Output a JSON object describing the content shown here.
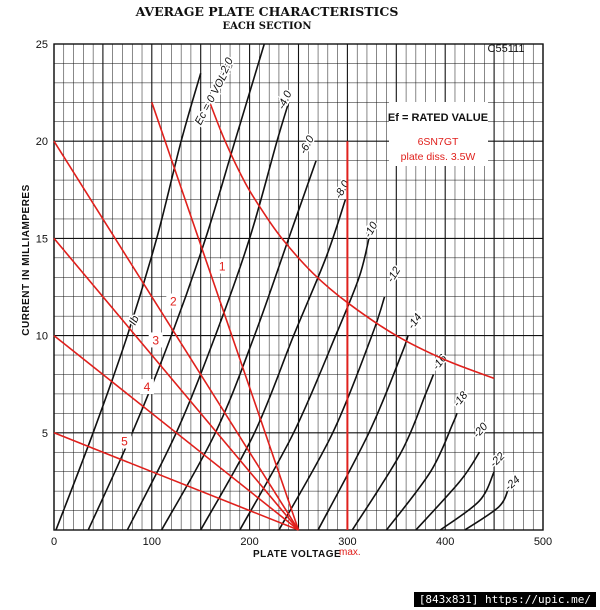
{
  "chart_data": {
    "type": "line",
    "title": "AVERAGE PLATE CHARACTERISTICS",
    "subtitle": "EACH SECTION",
    "catalog_code": "C55111",
    "xlabel": "PLATE VOLTAGE",
    "ylabel": "CURRENT IN MILLIAMPERES",
    "xlim": [
      0,
      500
    ],
    "ylim": [
      0,
      25
    ],
    "xticks": [
      0,
      100,
      200,
      300,
      400,
      500
    ],
    "yticks": [
      5,
      10,
      15,
      20,
      25
    ],
    "grid": true,
    "legend_box": "Ef = RATED VALUE",
    "annotations": [
      "6SN7GT",
      "plate diss. 3.5W"
    ],
    "max_line": {
      "label": "max.",
      "x": 300,
      "y_top": 20
    },
    "grid_curves": [
      {
        "name": "Ec = 0 VOLTS",
        "points": [
          [
            2,
            0
          ],
          [
            40,
            5
          ],
          [
            75,
            10
          ],
          [
            105,
            15
          ],
          [
            130,
            20
          ],
          [
            150,
            23.5
          ]
        ]
      },
      {
        "name": "-2.0",
        "points": [
          [
            35,
            0
          ],
          [
            80,
            5
          ],
          [
            120,
            10
          ],
          [
            155,
            15
          ],
          [
            185,
            20
          ],
          [
            215,
            25
          ]
        ]
      },
      {
        "name": "-4.0",
        "points": [
          [
            75,
            0
          ],
          [
            125,
            5
          ],
          [
            165,
            10
          ],
          [
            200,
            15
          ],
          [
            228,
            20
          ],
          [
            240,
            22
          ]
        ]
      },
      {
        "name": "-6.0",
        "points": [
          [
            110,
            0
          ],
          [
            165,
            5
          ],
          [
            205,
            10
          ],
          [
            240,
            15
          ],
          [
            268,
            19
          ]
        ]
      },
      {
        "name": "-8.0",
        "points": [
          [
            150,
            0
          ],
          [
            205,
            5
          ],
          [
            245,
            10
          ],
          [
            278,
            14
          ],
          [
            298,
            17
          ]
        ]
      },
      {
        "name": "-10",
        "points": [
          [
            190,
            0
          ],
          [
            245,
            5
          ],
          [
            288,
            10
          ],
          [
            312,
            13
          ],
          [
            322,
            15
          ]
        ]
      },
      {
        "name": "-12",
        "points": [
          [
            230,
            0
          ],
          [
            285,
            5
          ],
          [
            325,
            10
          ],
          [
            338,
            12
          ]
        ]
      },
      {
        "name": "-14",
        "points": [
          [
            270,
            0
          ],
          [
            322,
            5
          ],
          [
            355,
            9
          ],
          [
            362,
            10
          ]
        ]
      },
      {
        "name": "-16",
        "points": [
          [
            305,
            0
          ],
          [
            355,
            4
          ],
          [
            380,
            7
          ],
          [
            388,
            8
          ]
        ]
      },
      {
        "name": "-18",
        "points": [
          [
            340,
            0
          ],
          [
            385,
            3
          ],
          [
            408,
            5.5
          ],
          [
            412,
            6
          ]
        ]
      },
      {
        "name": "-20",
        "points": [
          [
            370,
            0
          ],
          [
            415,
            2.5
          ],
          [
            435,
            4
          ]
        ]
      },
      {
        "name": "-22",
        "points": [
          [
            395,
            0
          ],
          [
            435,
            1.5
          ],
          [
            450,
            3
          ]
        ]
      },
      {
        "name": "-24",
        "points": [
          [
            420,
            0
          ],
          [
            455,
            1.2
          ],
          [
            465,
            2.2
          ]
        ]
      }
    ],
    "dissipation_curve": {
      "label": "plate diss. 3.5W",
      "points": [
        [
          160,
          21.9
        ],
        [
          175,
          20
        ],
        [
          195,
          17.9
        ],
        [
          212,
          16.5
        ],
        [
          233,
          15
        ],
        [
          265,
          13.2
        ],
        [
          300,
          11.7
        ],
        [
          350,
          10
        ],
        [
          400,
          8.75
        ],
        [
          450,
          7.8
        ]
      ]
    },
    "load_lines": [
      {
        "label": "1",
        "points": [
          [
            100,
            22
          ],
          [
            250,
            0
          ]
        ]
      },
      {
        "label": "2",
        "points": [
          [
            0,
            20
          ],
          [
            250,
            0
          ]
        ]
      },
      {
        "label": "3",
        "points": [
          [
            0,
            15
          ],
          [
            250,
            0
          ]
        ]
      },
      {
        "label": "4",
        "points": [
          [
            0,
            10
          ],
          [
            250,
            0
          ]
        ]
      },
      {
        "label": "5",
        "points": [
          [
            0,
            5
          ],
          [
            250,
            0
          ]
        ]
      }
    ],
    "load_line_labels": [
      {
        "label": "1",
        "at": [
          172,
          13.5
        ]
      },
      {
        "label": "2",
        "at": [
          122,
          11.7
        ]
      },
      {
        "label": "3",
        "at": [
          104,
          9.7
        ]
      },
      {
        "label": "4",
        "at": [
          95,
          7.3
        ]
      },
      {
        "label": "5",
        "at": [
          72,
          4.5
        ]
      }
    ],
    "curve_label_positions": [
      {
        "name": "Ec = 0 VOLTS",
        "at": [
          150,
          20.8
        ],
        "angle": -62
      },
      {
        "name": "-2.0",
        "at": [
          175,
          23.3
        ],
        "angle": -65
      },
      {
        "name": "-4.0",
        "at": [
          235,
          21.6
        ],
        "angle": -65
      },
      {
        "name": "-6.0",
        "at": [
          257,
          19.3
        ],
        "angle": -62
      },
      {
        "name": "-8.0",
        "at": [
          293,
          17.0
        ],
        "angle": -62
      },
      {
        "name": "-10",
        "at": [
          323,
          15.0
        ],
        "angle": -60
      },
      {
        "name": "-12",
        "at": [
          346,
          12.7
        ],
        "angle": -58
      },
      {
        "name": "-14",
        "at": [
          367,
          10.3
        ],
        "angle": -55
      },
      {
        "name": "-16",
        "at": [
          392,
          8.2
        ],
        "angle": -52
      },
      {
        "name": "-18",
        "at": [
          413,
          6.3
        ],
        "angle": -50
      },
      {
        "name": "-20",
        "at": [
          433,
          4.7
        ],
        "angle": -48
      },
      {
        "name": "-22",
        "at": [
          450,
          3.2
        ],
        "angle": -45
      },
      {
        "name": "-24",
        "at": [
          465,
          2.0
        ],
        "angle": -42
      },
      {
        "name": "IB",
        "at": [
          83,
          10.5
        ],
        "angle": -65
      }
    ],
    "ib_label": "Ib"
  },
  "watermark": "[843x831] https://upic.me/"
}
